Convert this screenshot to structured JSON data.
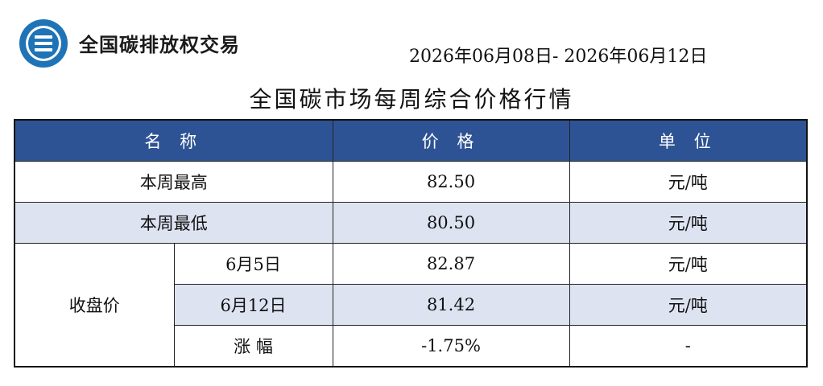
{
  "header": {
    "org_name": "全国碳排放权交易",
    "date_range": "2026年06月08日- 2026年06月12日",
    "title": "全国碳市场每周综合价格行情"
  },
  "colors": {
    "header_bg": "#2e5395",
    "shade_row": "#dde3f1",
    "logo_blue": "#1f73b7"
  },
  "table": {
    "headers": {
      "name": "名 称",
      "price": "价 格",
      "unit": "单 位"
    },
    "rows": {
      "weekly_high": {
        "label": "本周最高",
        "price": "82.50",
        "unit": "元/吨"
      },
      "weekly_low": {
        "label": "本周最低",
        "price": "80.50",
        "unit": "元/吨"
      },
      "closing_group": "收盘价",
      "close_jun5": {
        "label": "6月5日",
        "price": "82.87",
        "unit": "元/吨"
      },
      "close_jun12": {
        "label": "6月12日",
        "price": "81.42",
        "unit": "元/吨"
      },
      "change": {
        "label": "涨 幅",
        "price": "-1.75%",
        "unit": "-"
      }
    }
  }
}
